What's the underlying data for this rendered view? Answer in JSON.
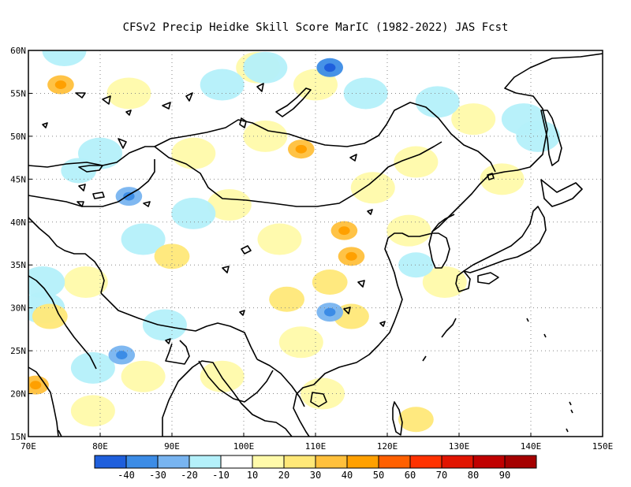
{
  "title": "CFSv2 Precip Heidke Skill Score MarIC (1982-2022) JAS Fcst",
  "map": {
    "lon_range": [
      70,
      150
    ],
    "lat_range": [
      15,
      60
    ],
    "lat_ticks": [
      {
        "value": 60,
        "label": "60N"
      },
      {
        "value": 55,
        "label": "55N"
      },
      {
        "value": 50,
        "label": "50N"
      },
      {
        "value": 45,
        "label": "45N"
      },
      {
        "value": 40,
        "label": "40N"
      },
      {
        "value": 35,
        "label": "35N"
      },
      {
        "value": 30,
        "label": "30N"
      },
      {
        "value": 25,
        "label": "25N"
      },
      {
        "value": 20,
        "label": "20N"
      },
      {
        "value": 15,
        "label": "15N"
      }
    ],
    "lon_ticks": [
      {
        "value": 70,
        "label": "70E"
      },
      {
        "value": 80,
        "label": "80E"
      },
      {
        "value": 90,
        "label": "90E"
      },
      {
        "value": 100,
        "label": "100E"
      },
      {
        "value": 110,
        "label": "110E"
      },
      {
        "value": 120,
        "label": "120E"
      },
      {
        "value": 130,
        "label": "130E"
      },
      {
        "value": 140,
        "label": "140E"
      },
      {
        "value": 150,
        "label": "150E"
      }
    ],
    "grid": "dotted"
  },
  "colorbar": {
    "colors": [
      "#1f5fdc",
      "#3c8ce6",
      "#78b4f0",
      "#b4f0fa",
      "#ffffff",
      "#fffaaa",
      "#ffe878",
      "#ffc03c",
      "#ffa000",
      "#ff6000",
      "#ff3200",
      "#e11400",
      "#c00000",
      "#a50000"
    ],
    "labels": [
      "-40",
      "-30",
      "-20",
      "-10",
      "10",
      "20",
      "30",
      "40",
      "50",
      "60",
      "70",
      "80",
      "90"
    ]
  },
  "chart_data": {
    "type": "heatmap",
    "title": "CFSv2 Precip Heidke Skill Score MarIC (1982-2022) JAS Fcst",
    "variable": "Precip Heidke Skill Score",
    "xlabel": "",
    "ylabel": "",
    "xlim": [
      70,
      150
    ],
    "ylim": [
      15,
      60
    ],
    "contour_levels": [
      -40,
      -30,
      -20,
      -10,
      10,
      20,
      30,
      40,
      50,
      60,
      70,
      80,
      90
    ],
    "features": [
      {
        "lon": 74.5,
        "lat": 56,
        "value": 35
      },
      {
        "lon": 108,
        "lat": 48.5,
        "value": 35
      },
      {
        "lon": 114,
        "lat": 39,
        "value": 35
      },
      {
        "lon": 115,
        "lat": 36,
        "value": 30
      },
      {
        "lon": 71,
        "lat": 21,
        "value": 30
      },
      {
        "lon": 106,
        "lat": 31,
        "value": 25
      },
      {
        "lon": 73,
        "lat": 29,
        "value": 20
      },
      {
        "lon": 115,
        "lat": 29,
        "value": 20
      },
      {
        "lon": 124,
        "lat": 17,
        "value": 20
      },
      {
        "lon": 90,
        "lat": 36,
        "value": 20
      },
      {
        "lon": 86,
        "lat": 22,
        "value": 15
      },
      {
        "lon": 103,
        "lat": 50,
        "value": 15
      },
      {
        "lon": 118,
        "lat": 44,
        "value": 15
      },
      {
        "lon": 132,
        "lat": 52,
        "value": 15
      },
      {
        "lon": 98,
        "lat": 42,
        "value": 15
      },
      {
        "lon": 102,
        "lat": 58,
        "value": 15
      },
      {
        "lon": 110,
        "lat": 56,
        "value": 15
      },
      {
        "lon": 124,
        "lat": 47,
        "value": 15
      },
      {
        "lon": 97,
        "lat": 22,
        "value": 15
      },
      {
        "lon": 108,
        "lat": 26,
        "value": 15
      },
      {
        "lon": 112,
        "lat": 33,
        "value": 20
      },
      {
        "lon": 136,
        "lat": 45,
        "value": 15
      },
      {
        "lon": 93,
        "lat": 48,
        "value": 15
      },
      {
        "lon": 84,
        "lat": 55,
        "value": 15
      },
      {
        "lon": 78,
        "lat": 33,
        "value": 15
      },
      {
        "lon": 105,
        "lat": 38,
        "value": 15
      },
      {
        "lon": 123,
        "lat": 39,
        "value": 15
      },
      {
        "lon": 128,
        "lat": 33,
        "value": 15
      },
      {
        "lon": 111,
        "lat": 20,
        "value": 15
      },
      {
        "lon": 79,
        "lat": 18,
        "value": 15
      },
      {
        "lon": 83,
        "lat": 24.5,
        "value": -30
      },
      {
        "lon": 84,
        "lat": 43,
        "value": -30
      },
      {
        "lon": 112,
        "lat": 29.5,
        "value": -30
      },
      {
        "lon": 124,
        "lat": 35,
        "value": -20
      },
      {
        "lon": 112,
        "lat": 58,
        "value": -35
      },
      {
        "lon": 77,
        "lat": 46,
        "value": -20
      },
      {
        "lon": 80,
        "lat": 48,
        "value": -15
      },
      {
        "lon": 86,
        "lat": 38,
        "value": -15
      },
      {
        "lon": 72,
        "lat": 30,
        "value": -15
      },
      {
        "lon": 75,
        "lat": 60,
        "value": -15
      },
      {
        "lon": 97,
        "lat": 56,
        "value": -15
      },
      {
        "lon": 103,
        "lat": 58,
        "value": -15
      },
      {
        "lon": 117,
        "lat": 55,
        "value": -15
      },
      {
        "lon": 127,
        "lat": 54,
        "value": -15
      },
      {
        "lon": 139,
        "lat": 52,
        "value": -15
      },
      {
        "lon": 141,
        "lat": 50,
        "value": -15
      },
      {
        "lon": 118,
        "lat": 50,
        "value": -10
      },
      {
        "lon": 93,
        "lat": 41,
        "value": -15
      },
      {
        "lon": 89,
        "lat": 28,
        "value": -15
      },
      {
        "lon": 97,
        "lat": 27,
        "value": -10
      },
      {
        "lon": 105,
        "lat": 32,
        "value": -10
      },
      {
        "lon": 103,
        "lat": 45,
        "value": -10
      },
      {
        "lon": 72,
        "lat": 33,
        "value": -15
      },
      {
        "lon": 79,
        "lat": 23,
        "value": -15
      },
      {
        "lon": 87,
        "lat": 30,
        "value": -10
      },
      {
        "lon": 117,
        "lat": 40,
        "value": -10
      },
      {
        "lon": 123,
        "lat": 28,
        "value": -10
      },
      {
        "lon": 145,
        "lat": 57,
        "value": -10
      }
    ]
  }
}
